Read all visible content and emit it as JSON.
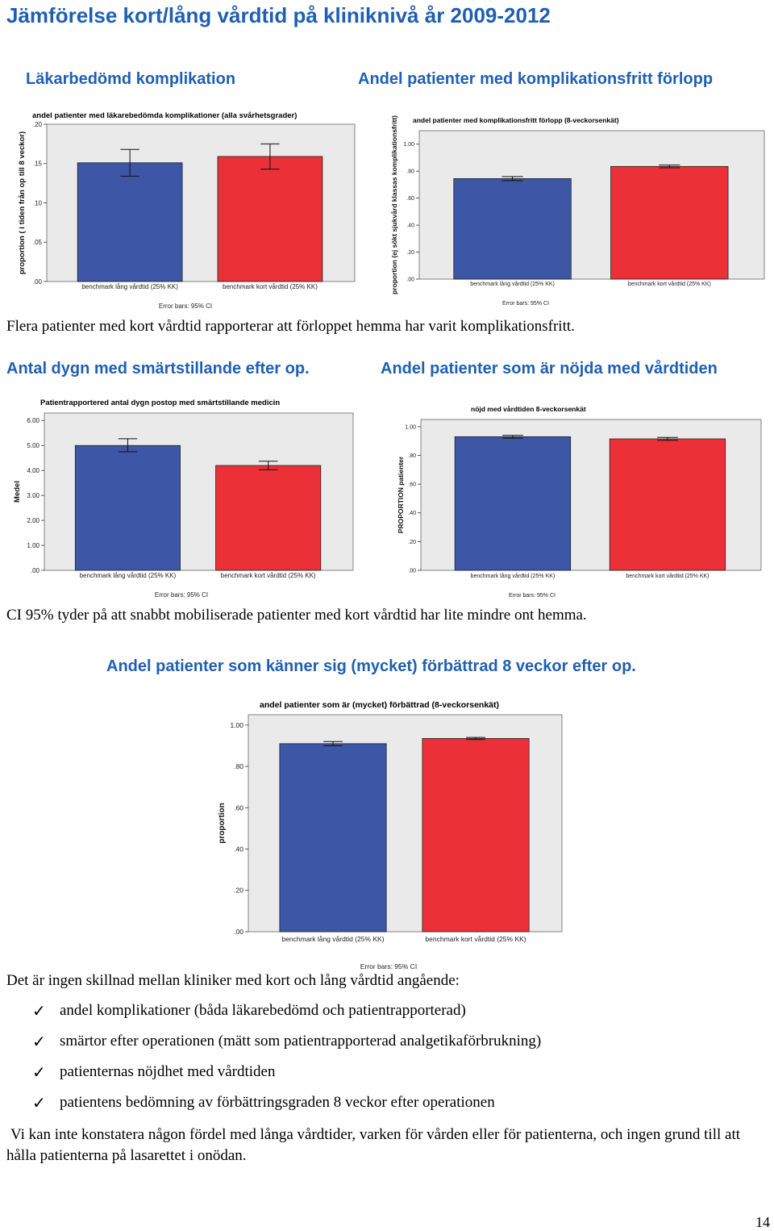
{
  "header": {
    "title": "Jämförelse kort/lång vårdtid på kliniknivå år 2009-2012"
  },
  "section1": {
    "left_heading": "Läkarbedömd komplikation",
    "right_heading": "Andel patienter med komplikationsfritt förlopp"
  },
  "text": {
    "para1": "Flera patienter med kort vårdtid rapporterar att förloppet hemma har varit komplikationsfritt.",
    "para2": "CI 95% tyder på att snabbt mobiliserade patienter med kort vårdtid har lite mindre ont hemma.",
    "para3": "Det är ingen skillnad mellan kliniker med kort och lång vårdtid angående:",
    "conclusion": "Vi kan inte konstatera någon fördel med långa vårdtider, varken för vården eller för patienterna, och ingen grund till att hålla patienterna på lasarettet i onödan."
  },
  "section2": {
    "left_heading": "Antal dygn med smärtstillande efter op.",
    "right_heading": "Andel patienter som är nöjda med vårdtiden"
  },
  "section3": {
    "heading": "Andel patienter som känner sig (mycket) förbättrad 8 veckor efter op."
  },
  "checklist": [
    "andel komplikationer (båda läkarebedömd och patientrapporterad)",
    "smärtor efter operationen (mätt som patientrapporterad analgetikaförbrukning)",
    "patienternas nöjdhet med vårdtiden",
    "patientens bedömning av förbättringsgraden 8 veckor efter operationen"
  ],
  "page_number": "14",
  "colors": {
    "heading_blue": "#1f5fb3",
    "bar_blue": "#3d56a6",
    "bar_red": "#ec3038",
    "plot_bg": "#eaeaea"
  },
  "chart_data": [
    {
      "id": "komplikation",
      "type": "bar",
      "title": "andel patienter med läkarebedömda komplikationer (alla svårhetsgrader)",
      "ylabel": "proportion ( i tiden från op till 8 veckor)",
      "xlabel": "",
      "categories": [
        "benchmark lång vårdtid (25% KK)",
        "benchmark kort vårdtid (25% KK)"
      ],
      "values": [
        0.151,
        0.159
      ],
      "ci_low": [
        0.134,
        0.143
      ],
      "ci_high": [
        0.168,
        0.175
      ],
      "ylim": [
        0,
        0.2
      ],
      "ticks": [
        0,
        0.05,
        0.1,
        0.15,
        0.2
      ],
      "tick_labels": [
        ".00",
        ".05",
        ".10",
        ".15",
        ".20"
      ],
      "error_label": "Error bars: 95% CI",
      "grid": false
    },
    {
      "id": "komplikationsfritt",
      "type": "bar",
      "title": "andel  patienter med komplikationsfritt förlopp (8-veckorsenkät)",
      "ylabel": "proportion (ej sökt sjukvård klassas komplikationsfritt)",
      "xlabel": "",
      "categories": [
        "benchmark lång vårdtid (25% KK)",
        "benchmark kort vårdtid (25% KK)"
      ],
      "values": [
        0.745,
        0.835
      ],
      "ci_low": [
        0.73,
        0.825
      ],
      "ci_high": [
        0.76,
        0.845
      ],
      "ylim": [
        0,
        1.1
      ],
      "ticks": [
        0,
        0.2,
        0.4,
        0.6,
        0.8,
        1.0
      ],
      "tick_labels": [
        ".00",
        ".20",
        ".40",
        ".60",
        ".80",
        "1.00"
      ],
      "error_label": "Error bars: 95% CI",
      "grid": false
    },
    {
      "id": "smartstillande",
      "type": "bar",
      "title": "Patientrapportered antal dygn postop med smärtstillande medicin",
      "ylabel": "Medel",
      "xlabel": "",
      "categories": [
        "benchmark lång vårdtid (25% KK)",
        "benchmark kort vårdtid (25% KK)"
      ],
      "values": [
        5.0,
        4.2
      ],
      "ci_low": [
        4.75,
        4.03
      ],
      "ci_high": [
        5.27,
        4.37
      ],
      "ylim": [
        0,
        6.3
      ],
      "ticks": [
        0,
        1,
        2,
        3,
        4,
        5,
        6
      ],
      "tick_labels": [
        ".00",
        "1.00",
        "2.00",
        "3.00",
        "4.00",
        "5.00",
        "6.00"
      ],
      "error_label": "Error bars: 95% CI",
      "grid": false
    },
    {
      "id": "nojd",
      "type": "bar",
      "title": "nöjd med vårdtiden  8-veckorsenkät",
      "ylabel": "PROPORTION patienter",
      "xlabel": "",
      "categories": [
        "benchmark lång vårdtid (25% KK)",
        "benchmark kort vårdtid (25% KK)"
      ],
      "values": [
        0.93,
        0.915
      ],
      "ci_low": [
        0.92,
        0.905
      ],
      "ci_high": [
        0.94,
        0.925
      ],
      "ylim": [
        0,
        1.05
      ],
      "ticks": [
        0,
        0.2,
        0.4,
        0.6,
        0.8,
        1.0
      ],
      "tick_labels": [
        ".00",
        ".20",
        ".40",
        ".60",
        ".80",
        "1.00"
      ],
      "error_label": "Error bars: 95% CI",
      "grid": false
    },
    {
      "id": "forbattrad",
      "type": "bar",
      "title": "andel patienter som är (mycket) förbättrad (8-veckorsenkät)",
      "ylabel": "proportion",
      "xlabel": "",
      "categories": [
        "benchmark lång vårdtid (25% KK)",
        "benchmark kort vårdtid (25% KK)"
      ],
      "values": [
        0.91,
        0.935
      ],
      "ci_low": [
        0.9,
        0.93
      ],
      "ci_high": [
        0.92,
        0.94
      ],
      "ylim": [
        0,
        1.05
      ],
      "ticks": [
        0,
        0.2,
        0.4,
        0.6,
        0.8,
        1.0
      ],
      "tick_labels": [
        ".00",
        ".20",
        ".40",
        ".60",
        ".80",
        "1.00"
      ],
      "error_label": "Error bars: 95% CI",
      "grid": false
    }
  ]
}
